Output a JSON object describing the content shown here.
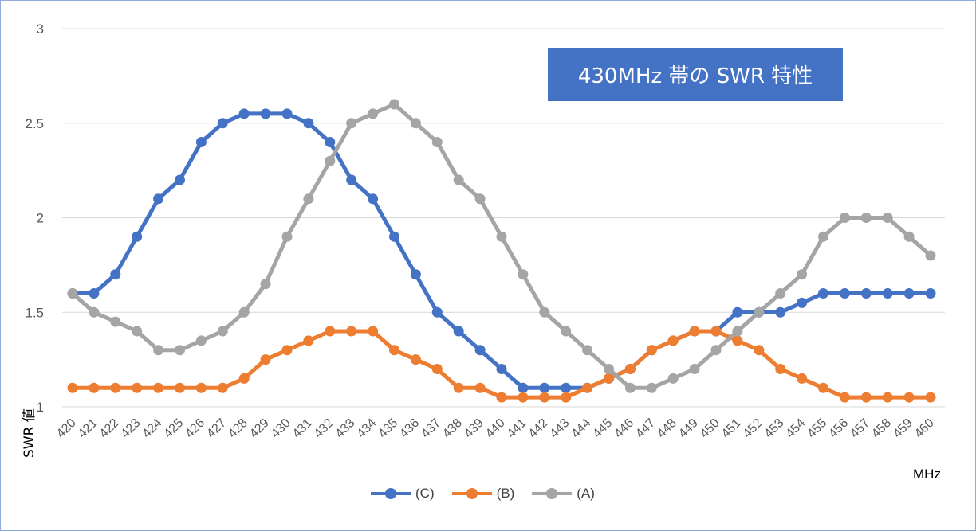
{
  "chart_data": {
    "type": "line",
    "title": "430MHz 帯の SWR 特性",
    "xlabel": "MHz",
    "ylabel": "SWR 値",
    "ylim": [
      1,
      3
    ],
    "yticks": [
      "1",
      "1.5",
      "2",
      "2.5",
      "3"
    ],
    "grid": "horizontal",
    "legend_position": "bottom",
    "x": [
      420,
      421,
      422,
      423,
      424,
      425,
      426,
      427,
      428,
      429,
      430,
      431,
      432,
      433,
      434,
      435,
      436,
      437,
      438,
      439,
      440,
      441,
      442,
      443,
      444,
      445,
      446,
      447,
      448,
      449,
      450,
      451,
      452,
      453,
      454,
      455,
      456,
      457,
      458,
      459,
      460
    ],
    "series": [
      {
        "name": "(C)",
        "color": "#4472c4",
        "values": [
          1.6,
          1.6,
          1.7,
          1.9,
          2.1,
          2.2,
          2.4,
          2.5,
          2.55,
          2.55,
          2.55,
          2.5,
          2.4,
          2.2,
          2.1,
          1.9,
          1.7,
          1.5,
          1.4,
          1.3,
          1.2,
          1.1,
          1.1,
          1.1,
          1.1,
          1.15,
          1.2,
          1.3,
          1.35,
          1.4,
          1.4,
          1.5,
          1.5,
          1.5,
          1.55,
          1.6,
          1.6,
          1.6,
          1.6,
          1.6,
          1.6
        ]
      },
      {
        "name": "(B)",
        "color": "#ed7d31",
        "values": [
          1.1,
          1.1,
          1.1,
          1.1,
          1.1,
          1.1,
          1.1,
          1.1,
          1.15,
          1.25,
          1.3,
          1.35,
          1.4,
          1.4,
          1.4,
          1.3,
          1.25,
          1.2,
          1.1,
          1.1,
          1.05,
          1.05,
          1.05,
          1.05,
          1.1,
          1.15,
          1.2,
          1.3,
          1.35,
          1.4,
          1.4,
          1.35,
          1.3,
          1.2,
          1.15,
          1.1,
          1.05,
          1.05,
          1.05,
          1.05,
          1.05
        ]
      },
      {
        "name": "(A)",
        "color": "#a5a5a5",
        "values": [
          1.6,
          1.5,
          1.45,
          1.4,
          1.3,
          1.3,
          1.35,
          1.4,
          1.5,
          1.65,
          1.9,
          2.1,
          2.3,
          2.5,
          2.55,
          2.6,
          2.5,
          2.4,
          2.2,
          2.1,
          1.9,
          1.7,
          1.5,
          1.4,
          1.3,
          1.2,
          1.1,
          1.1,
          1.15,
          1.2,
          1.3,
          1.4,
          1.5,
          1.6,
          1.7,
          1.9,
          2.0,
          2.0,
          2.0,
          1.9,
          1.8
        ]
      }
    ]
  }
}
